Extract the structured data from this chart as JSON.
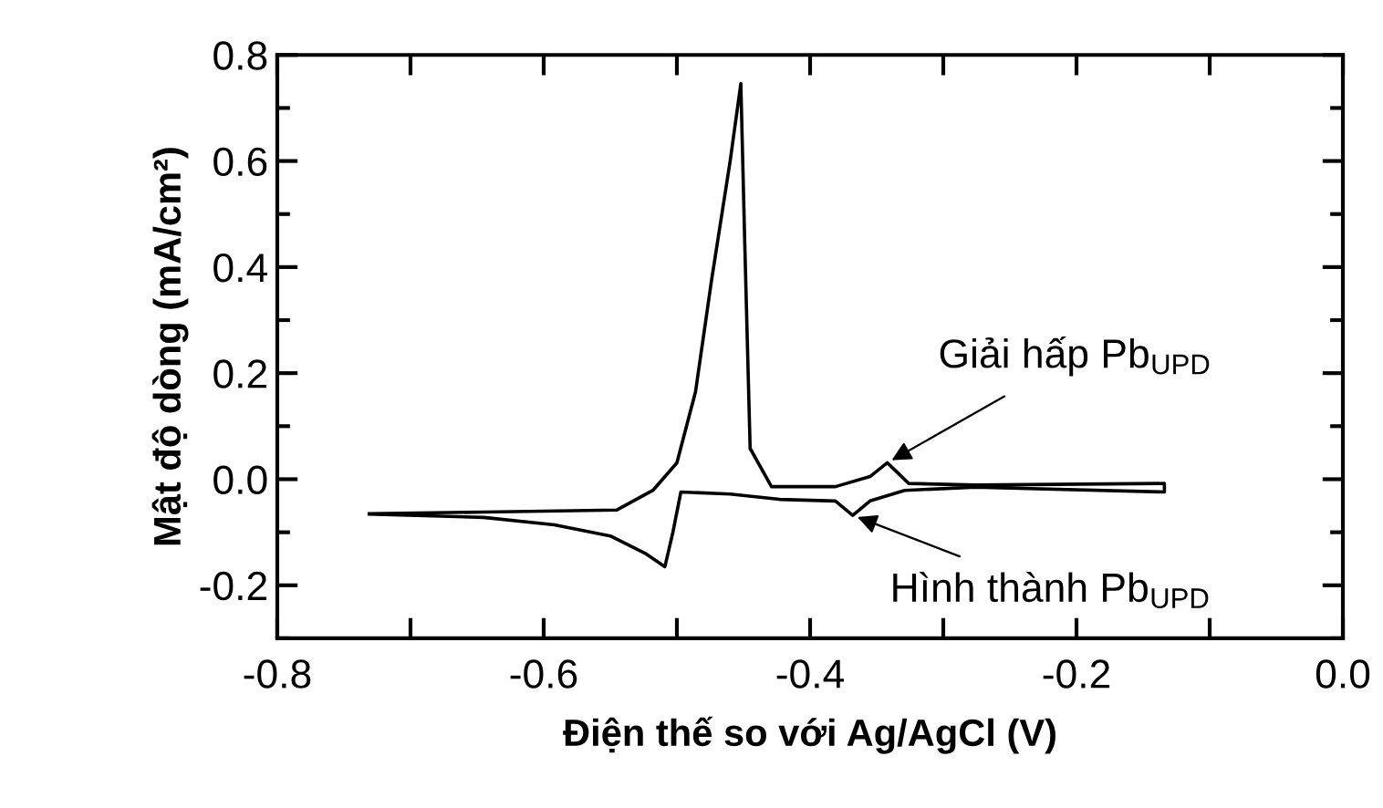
{
  "chart_data": {
    "type": "line",
    "xlabel": "Điện thế so với Ag/AgCl (V)",
    "ylabel": "Mật độ dòng (mA/cm²)",
    "series": [
      {
        "color": "#000000",
        "x": [
          -0.731,
          -0.645,
          -0.545,
          -0.518,
          -0.5,
          -0.486,
          -0.474,
          -0.46,
          -0.452,
          -0.449,
          -0.445,
          -0.429,
          -0.381,
          -0.355,
          -0.342,
          -0.326,
          -0.276,
          -0.134,
          -0.134,
          -0.276,
          -0.329,
          -0.355,
          -0.368,
          -0.381,
          -0.423,
          -0.46,
          -0.497,
          -0.503,
          -0.509,
          -0.523,
          -0.55,
          -0.592,
          -0.645,
          -0.731
        ],
        "values": [
          -0.065,
          -0.062,
          -0.058,
          -0.021,
          0.031,
          0.165,
          0.375,
          0.6,
          0.746,
          0.44,
          0.058,
          -0.014,
          -0.014,
          0.005,
          0.031,
          -0.008,
          -0.011,
          -0.008,
          -0.024,
          -0.015,
          -0.021,
          -0.041,
          -0.068,
          -0.041,
          -0.038,
          -0.028,
          -0.024,
          -0.1,
          -0.165,
          -0.141,
          -0.107,
          -0.086,
          -0.072,
          -0.066
        ]
      }
    ],
    "annotations": [
      {
        "text": "Giải hấp Pb$_{UPD}$",
        "x": -0.342,
        "y": 0.031
      },
      {
        "text": "Hình thành Pb$_{UPD}$",
        "x": -0.368,
        "y": -0.068
      }
    ],
    "xlim": [
      -0.8,
      0.0
    ],
    "ylim": [
      -0.3,
      0.8
    ],
    "xticks": [
      -0.8,
      {
        "value": -0.7,
        "label": null
      },
      -0.6,
      {
        "value": -0.5,
        "label": null
      },
      -0.4,
      {
        "value": -0.3,
        "label": null
      },
      -0.2,
      {
        "value": -0.1,
        "label": null
      },
      {
        "value": 0.0,
        "label": "0.0"
      }
    ],
    "yticks": [
      {
        "value": -0.3,
        "label": null
      },
      -0.2,
      {
        "value": -0.1,
        "label": null
      },
      {
        "value": 0.0,
        "label": "0.0"
      },
      {
        "value": 0.1,
        "label": null
      },
      0.2,
      {
        "value": 0.3,
        "label": null
      },
      0.4,
      {
        "value": 0.5,
        "label": null
      },
      0.6,
      {
        "value": 0.7,
        "label": null
      },
      0.8
    ],
    "grid": false,
    "legend": false,
    "marker": "none",
    "line_style": "solid"
  }
}
